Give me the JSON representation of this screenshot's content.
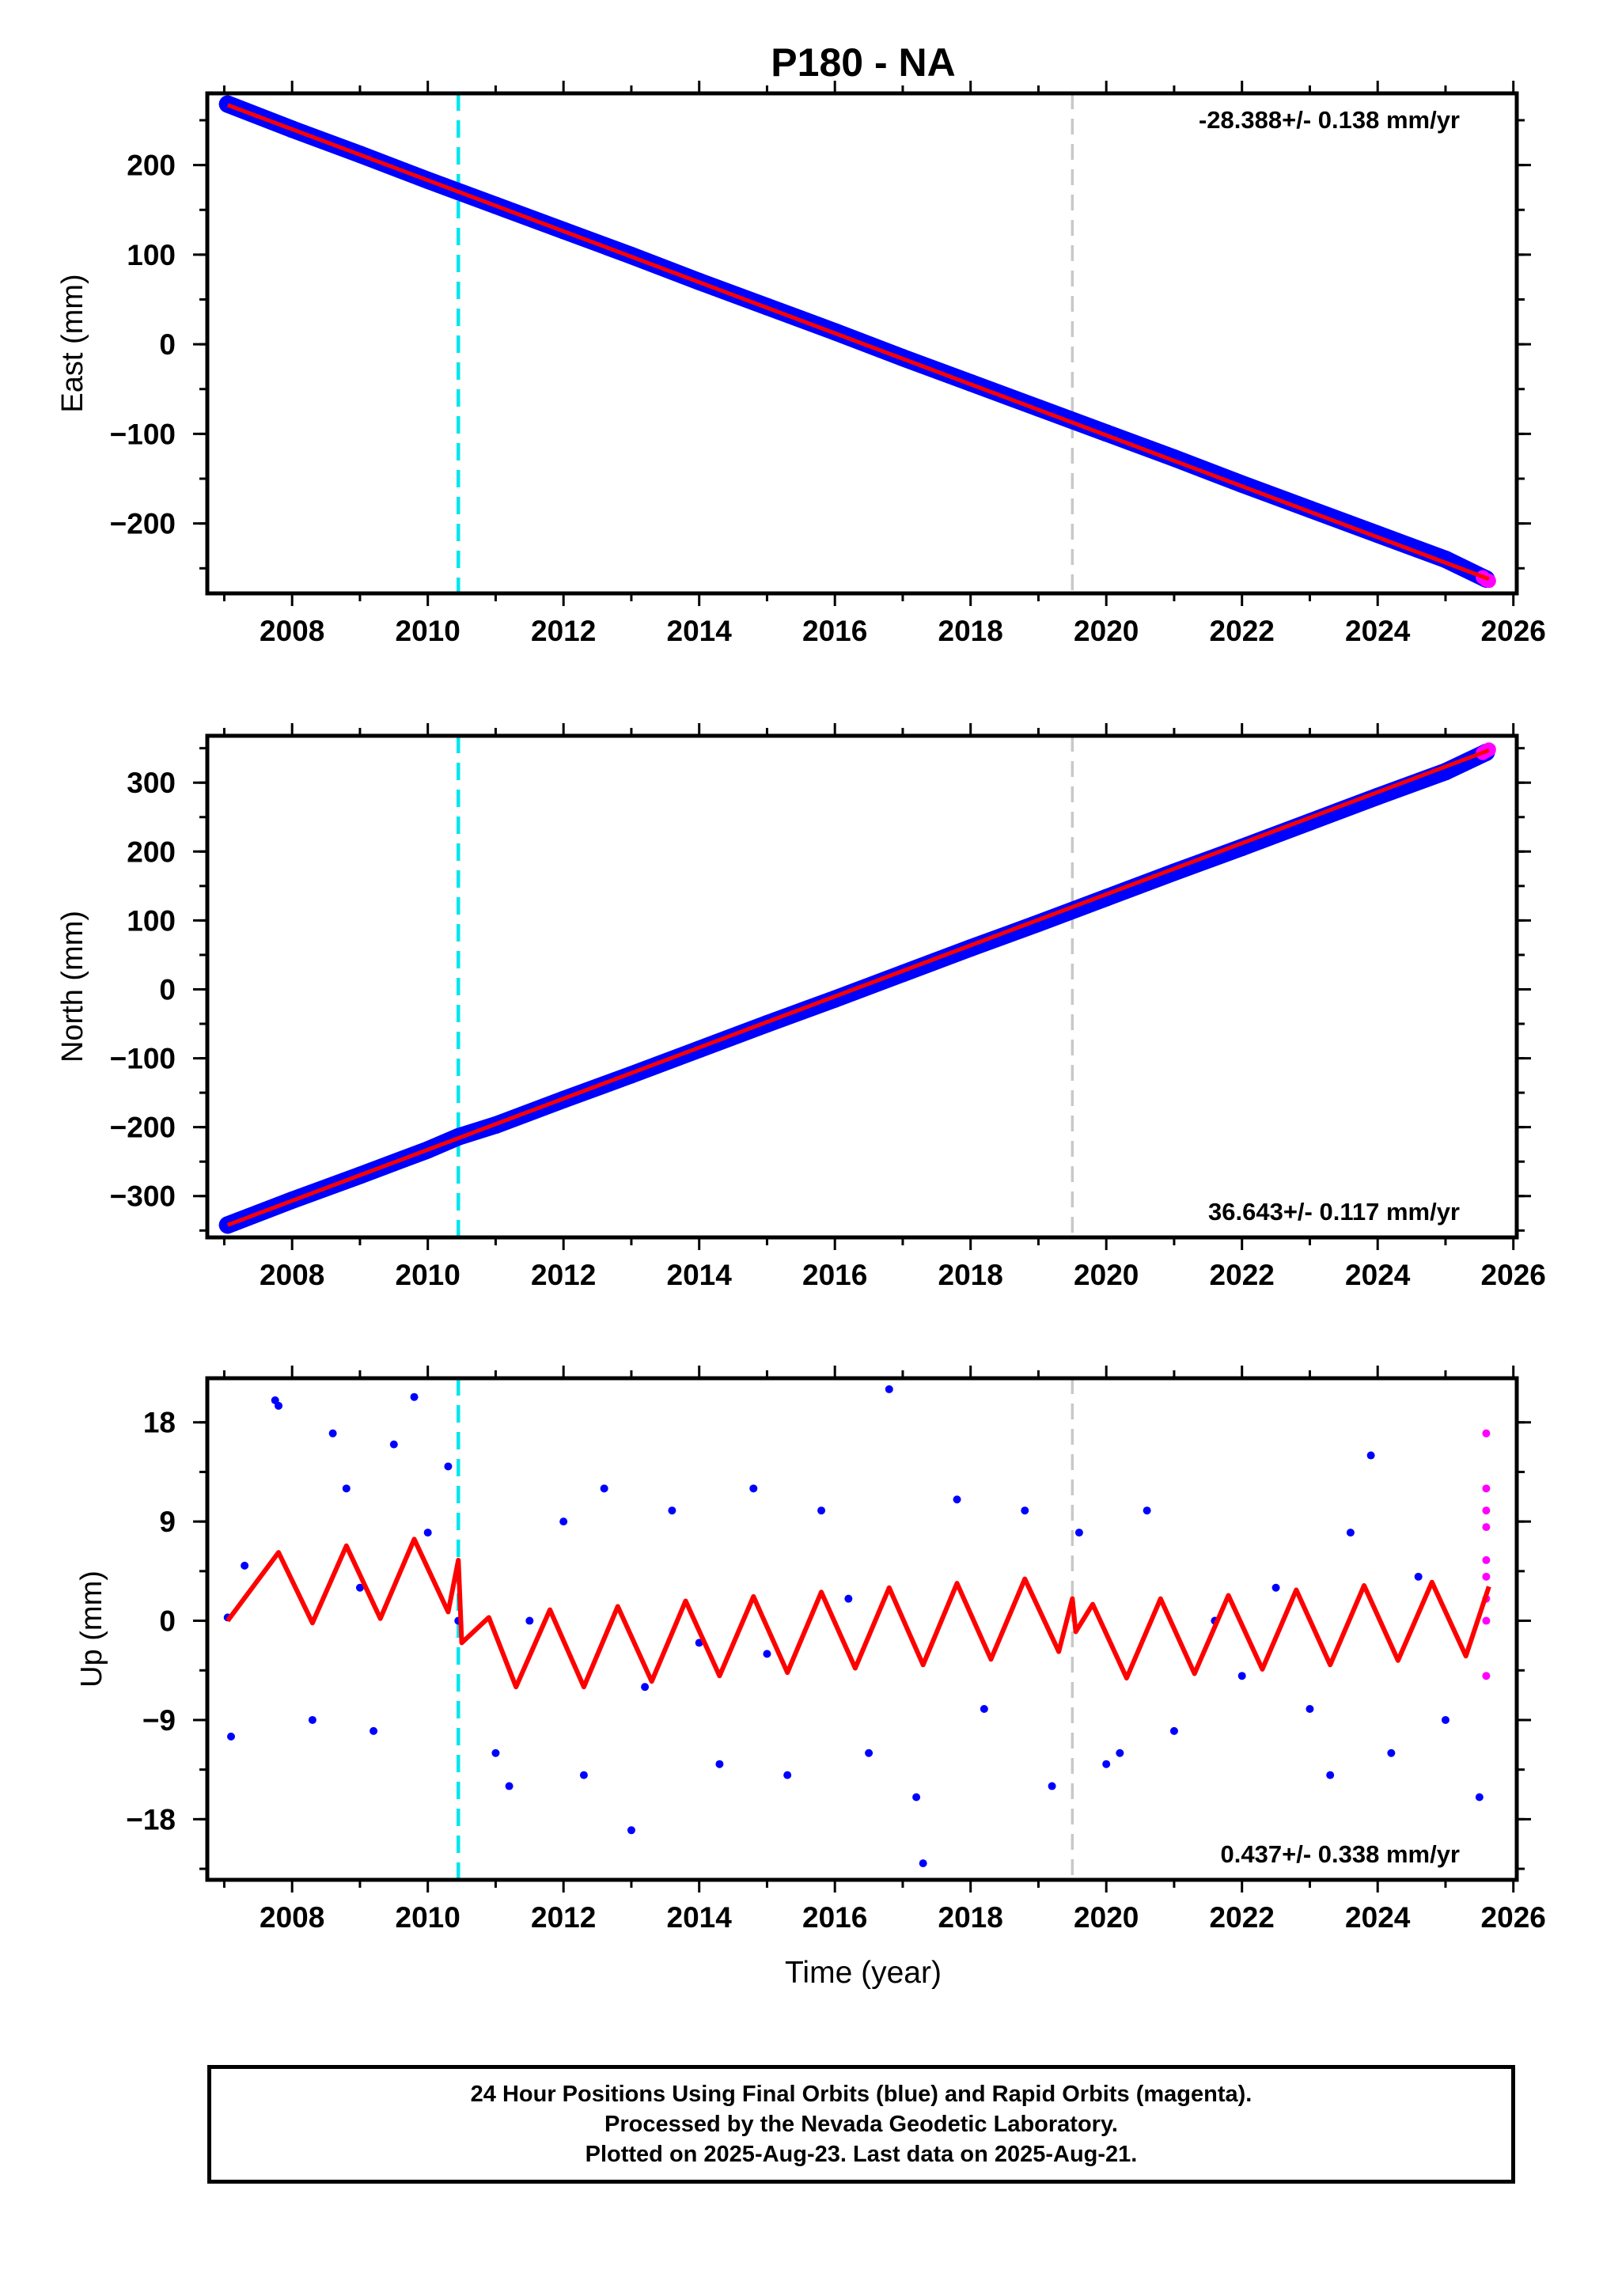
{
  "title": "P180 - NA",
  "xlabel": "Time (year)",
  "colors": {
    "final_orbits": "#0000ff",
    "rapid_orbits": "#ff00ff",
    "fit": "#ff0000",
    "event_line_1": "#00e5ee",
    "event_line_2": "#c8c8c8"
  },
  "chart_data": [
    {
      "type": "scatter",
      "component": "East",
      "ylabel": "East (mm)",
      "xlim": [
        2006.75,
        2026.05
      ],
      "ylim": [
        -278,
        280
      ],
      "xticks": [
        "2008",
        "2010",
        "2012",
        "2014",
        "2016",
        "2018",
        "2020",
        "2022",
        "2024",
        "2026"
      ],
      "yticks": [
        "200",
        "100",
        "0",
        "−100",
        "−200"
      ],
      "rate_text": "-28.388+/- 0.138 mm/yr",
      "rate_position": "top-right",
      "series": [
        {
          "color": "#0000ff",
          "x": [
            2007.05,
            2008.0,
            2009.0,
            2010.0,
            2011.0,
            2012.0,
            2013.0,
            2014.0,
            2015.0,
            2016.0,
            2017.0,
            2018.0,
            2019.0,
            2020.0,
            2021.0,
            2022.0,
            2023.0,
            2024.0,
            2025.0,
            2025.6
          ],
          "y": [
            268,
            240,
            212,
            183,
            155,
            127,
            99,
            70,
            42,
            14,
            -15,
            -43,
            -71,
            -99,
            -127,
            -156,
            -184,
            -212,
            -240,
            -262
          ]
        },
        {
          "color": "#ff00ff",
          "x": [
            2025.55,
            2025.6,
            2025.64
          ],
          "y": [
            -260,
            -263,
            -264
          ]
        }
      ],
      "fit_line": {
        "color": "#ff0000",
        "x": [
          2007.05,
          2025.64
        ],
        "y": [
          267,
          -262
        ]
      },
      "vertical_lines": [
        {
          "x": 2010.45,
          "color": "#00e5ee",
          "style": "dashed"
        },
        {
          "x": 2019.5,
          "color": "#c8c8c8",
          "style": "dashed"
        }
      ]
    },
    {
      "type": "scatter",
      "component": "North",
      "ylabel": "North (mm)",
      "xlim": [
        2006.75,
        2026.05
      ],
      "ylim": [
        -360,
        368
      ],
      "xticks": [
        "2008",
        "2010",
        "2012",
        "2014",
        "2016",
        "2018",
        "2020",
        "2022",
        "2024",
        "2026"
      ],
      "yticks": [
        "300",
        "200",
        "100",
        "0",
        "−100",
        "−200",
        "−300"
      ],
      "rate_text": "36.643+/- 0.117 mm/yr",
      "rate_position": "bottom-right",
      "series": [
        {
          "color": "#0000ff",
          "x": [
            2007.05,
            2008.0,
            2009.0,
            2010.0,
            2010.45,
            2011.0,
            2012.0,
            2013.0,
            2014.0,
            2015.0,
            2016.0,
            2017.0,
            2018.0,
            2019.0,
            2020.0,
            2021.0,
            2022.0,
            2023.0,
            2024.0,
            2025.0,
            2025.6
          ],
          "y": [
            -342,
            -306,
            -270,
            -233,
            -214,
            -197,
            -160,
            -124,
            -87,
            -50,
            -14,
            23,
            60,
            96,
            133,
            170,
            206,
            243,
            280,
            316,
            344
          ]
        },
        {
          "color": "#ff00ff",
          "x": [
            2025.55,
            2025.6,
            2025.64
          ],
          "y": [
            343,
            346,
            348
          ]
        }
      ],
      "fit_line": {
        "color": "#ff0000",
        "x": [
          2007.05,
          2025.64
        ],
        "y": [
          -342,
          347
        ]
      },
      "vertical_lines": [
        {
          "x": 2010.45,
          "color": "#00e5ee",
          "style": "dashed"
        },
        {
          "x": 2019.5,
          "color": "#c8c8c8",
          "style": "dashed"
        }
      ]
    },
    {
      "type": "scatter",
      "component": "Up",
      "ylabel": "Up (mm)",
      "xlim": [
        2006.75,
        2026.05
      ],
      "ylim": [
        -23.5,
        22
      ],
      "xticks": [
        "2008",
        "2010",
        "2012",
        "2014",
        "2016",
        "2018",
        "2020",
        "2022",
        "2024",
        "2026"
      ],
      "yticks": [
        "18",
        "9",
        "0",
        "−9",
        "−18"
      ],
      "rate_text": "0.437+/- 0.338 mm/yr",
      "rate_position": "bottom-right",
      "series": [
        {
          "color": "#0000ff",
          "x": [
            2007.05,
            2007.1,
            2007.3,
            2007.75,
            2007.8,
            2008.3,
            2008.6,
            2008.8,
            2009.0,
            2009.2,
            2009.5,
            2009.8,
            2010.0,
            2010.3,
            2010.45,
            2011.0,
            2011.2,
            2011.5,
            2012.0,
            2012.3,
            2012.6,
            2013.0,
            2013.2,
            2013.6,
            2014.0,
            2014.3,
            2014.8,
            2015.0,
            2015.3,
            2015.8,
            2016.2,
            2016.5,
            2016.8,
            2017.2,
            2017.3,
            2017.8,
            2018.2,
            2018.8,
            2019.2,
            2019.6,
            2020.0,
            2020.2,
            2020.6,
            2021.0,
            2021.6,
            2022.0,
            2022.5,
            2023.0,
            2023.3,
            2023.6,
            2023.9,
            2024.2,
            2024.6,
            2025.0,
            2025.5
          ],
          "y": [
            0.3,
            -10.5,
            5,
            20,
            19.5,
            -9,
            17,
            12,
            3,
            -10,
            16,
            20.3,
            8,
            14,
            0,
            -12,
            -15,
            0,
            9,
            -14,
            12,
            -19,
            -6,
            10,
            -2,
            -13,
            12,
            -3,
            -14,
            10,
            2,
            -12,
            21,
            -16,
            -22,
            11,
            -8,
            10,
            -15,
            8,
            -13,
            -12,
            10,
            -10,
            0,
            -5,
            3,
            -8,
            -14,
            8,
            15,
            -12,
            4,
            -9,
            -16
          ]
        },
        {
          "color": "#ff00ff",
          "x": [
            2025.6,
            2025.6,
            2025.6,
            2025.6,
            2025.6,
            2025.6,
            2025.6,
            2025.6,
            2025.6
          ],
          "y": [
            17,
            12,
            10,
            8.5,
            5.5,
            4,
            2,
            0,
            -5
          ]
        }
      ],
      "fit_line": {
        "color": "#ff0000",
        "x": [
          2007.05,
          2007.8,
          2008.3,
          2008.8,
          2009.3,
          2009.8,
          2010.3,
          2010.45,
          2010.5,
          2010.9,
          2011.3,
          2011.8,
          2012.3,
          2012.8,
          2013.3,
          2013.8,
          2014.3,
          2014.8,
          2015.3,
          2015.8,
          2016.3,
          2016.8,
          2017.3,
          2017.8,
          2018.3,
          2018.8,
          2019.3,
          2019.5,
          2019.55,
          2019.8,
          2020.3,
          2020.8,
          2021.3,
          2021.8,
          2022.3,
          2022.8,
          2023.3,
          2023.8,
          2024.3,
          2024.8,
          2025.3,
          2025.64
        ],
        "y": [
          0,
          6.2,
          -0.2,
          6.8,
          0.2,
          7.4,
          0.8,
          5.5,
          -2,
          0.3,
          -6,
          1,
          -6,
          1.3,
          -5.5,
          1.8,
          -5,
          2.2,
          -4.7,
          2.6,
          -4.3,
          3,
          -4,
          3.4,
          -3.5,
          3.8,
          -2.8,
          2,
          -1,
          1.5,
          -5.2,
          2,
          -4.8,
          2.3,
          -4.4,
          2.8,
          -4,
          3.2,
          -3.6,
          3.5,
          -3.2,
          3.1
        ]
      },
      "vertical_lines": [
        {
          "x": 2010.45,
          "color": "#00e5ee",
          "style": "dashed"
        },
        {
          "x": 2019.5,
          "color": "#c8c8c8",
          "style": "dashed"
        }
      ]
    }
  ],
  "footer": {
    "line1": "24 Hour Positions Using Final Orbits (blue) and Rapid Orbits (magenta).",
    "line2": "Processed by the Nevada Geodetic Laboratory.",
    "line3": "Plotted on 2025-Aug-23. Last data on 2025-Aug-21."
  }
}
